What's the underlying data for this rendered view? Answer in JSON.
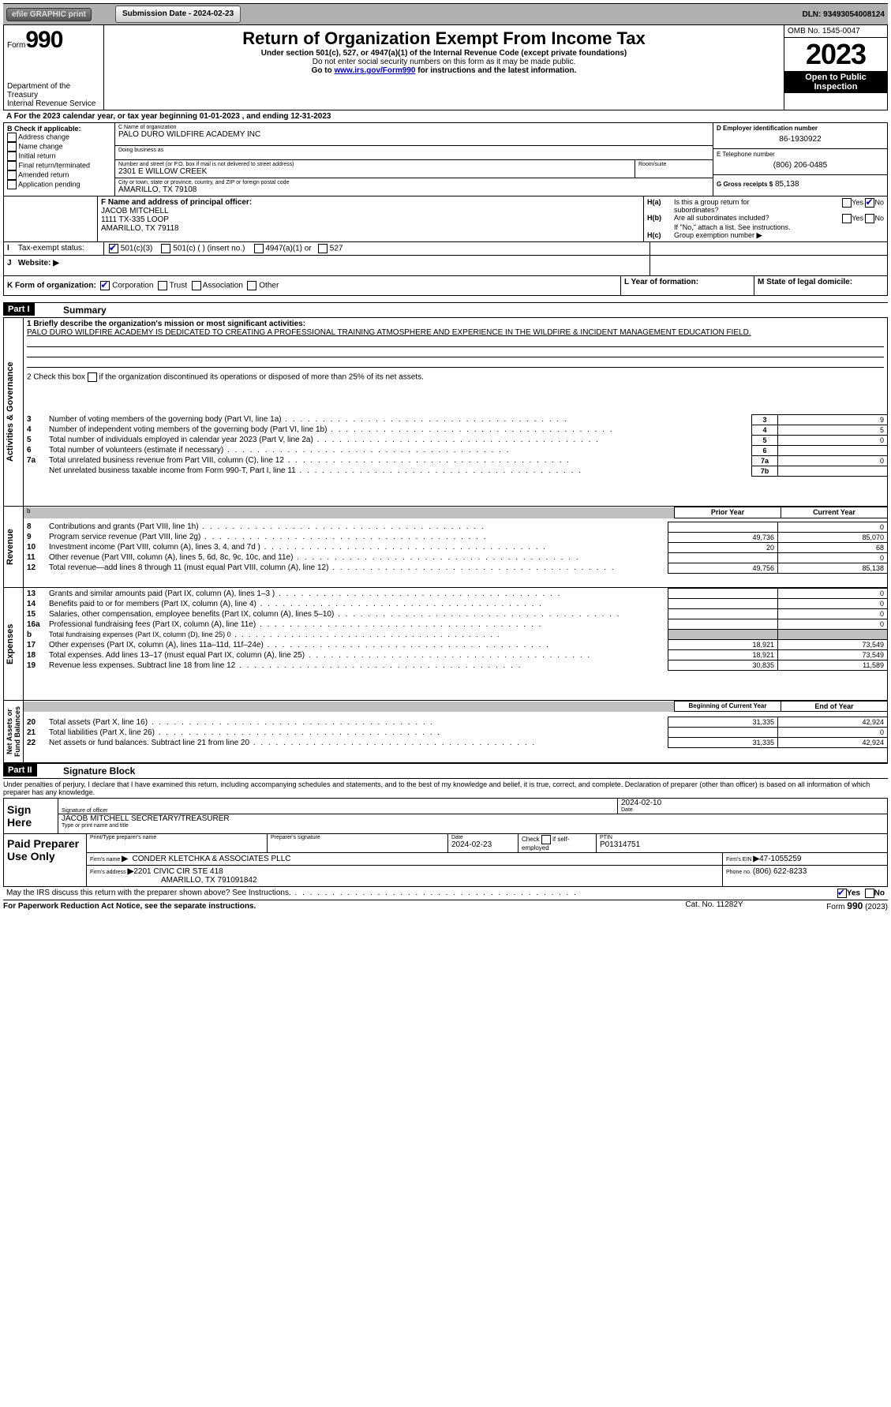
{
  "topbar": {
    "efile": "efile GRAPHIC print",
    "subDateLbl": "Submission Date - 2024-02-23",
    "dlnLbl": "DLN: 93493054008124"
  },
  "header": {
    "formWord": "Form",
    "formNum": "990",
    "title": "Return of Organization Exempt From Income Tax",
    "subtitle": "Under section 501(c), 527, or 4947(a)(1) of the Internal Revenue Code (except private foundations)",
    "warn": "Do not enter social security numbers on this form as it may be made public.",
    "goTo": "Go to ",
    "irsLink": "www.irs.gov/Form990",
    "goTo2": " for instructions and the latest information.",
    "dept": "Department of the Treasury",
    "irs": "Internal Revenue Service",
    "ombLbl": "OMB No. 1545-0047",
    "year": "2023",
    "inspect1": "Open to Public",
    "inspect2": "Inspection"
  },
  "A": {
    "line": "A For the 2023 calendar year, or tax year beginning 01-01-2023    , and ending 12-31-2023"
  },
  "B": {
    "hdr": "B  Check if applicable:",
    "opts": [
      "Address change",
      "Name change",
      "Initial return",
      "Final return/terminated",
      "Amended return",
      "Application pending"
    ]
  },
  "C": {
    "nameLbl": "C Name of organization",
    "name": "PALO DURO WILDFIRE ACADEMY INC",
    "dbaLbl": "Doing business as",
    "dba": "",
    "streetLbl": "Number and street (or P.O. box if mail is not delivered to street address)",
    "suiteLbl": "Room/suite",
    "street": "2301 E WILLOW CREEK",
    "cityLbl": "City or town, state or province, country, and ZIP or foreign postal code",
    "city": "AMARILLO, TX   79108"
  },
  "D": {
    "lbl": "D  Employer identification number",
    "val": "86-1930922"
  },
  "E": {
    "lbl": "E  Telephone number",
    "val": "(806) 206-0485"
  },
  "G": {
    "lbl": "G  Gross receipts $",
    "val": "85,138"
  },
  "F": {
    "lbl": "F  Name and address of principal officer:",
    "l1": "JACOB MITCHELL",
    "l2": "1111 TX-335 LOOP",
    "l3": "AMARILLO, TX  79118"
  },
  "H": {
    "a": "Is this a group return for",
    "a2": "subordinates?",
    "b": "Are all subordinates included?",
    "ifno": "If \"No,\" attach a list. See instructions.",
    "c": "Group exemption number ",
    "cArrow": "▶"
  },
  "I": {
    "lbl": "Tax-exempt status:",
    "o1": "501(c)(3)",
    "o2": "501(c) (  ) (insert no.)",
    "o3": "4947(a)(1) or",
    "o4": "527"
  },
  "J": {
    "lbl": "Website: ",
    "arrow": "▶"
  },
  "K": {
    "lbl": "K Form of organization:",
    "o1": "Corporation",
    "o2": "Trust",
    "o3": "Association",
    "o4": "Other"
  },
  "L": {
    "lbl": "L  Year of formation:"
  },
  "M": {
    "lbl": "M  State of legal domicile:"
  },
  "part1": {
    "hdr": "Part I",
    "title": "Summary"
  },
  "summary": {
    "l1lbl": "1   Briefly describe the organization's mission or most significant activities:",
    "mission": "PALO DURO WILDFIRE ACADEMY IS DEDICATED TO CREATING A PROFESSIONAL TRAINING ATMOSPHERE AND EXPERIENCE IN THE WILDFIRE & INCIDENT MANAGEMENT EDUCATION FIELD.",
    "l2a": "2   Check this box ",
    "l2b": " if the organization discontinued its operations or disposed of more than 25% of its net assets.",
    "rows": [
      {
        "n": "3",
        "t": "Number of voting members of the governing body (Part VI, line 1a)",
        "box": "3",
        "v": "9"
      },
      {
        "n": "4",
        "t": "Number of independent voting members of the governing body (Part VI, line 1b)",
        "box": "4",
        "v": "5"
      },
      {
        "n": "5",
        "t": "Total number of individuals employed in calendar year 2023 (Part V, line 2a)",
        "box": "5",
        "v": "0"
      },
      {
        "n": "6",
        "t": "Total number of volunteers (estimate if necessary)",
        "box": "6",
        "v": ""
      },
      {
        "n": "7a",
        "t": "Total unrelated business revenue from Part VIII, column (C), line 12",
        "box": "7a",
        "v": "0"
      },
      {
        "n": "",
        "t": "Net unrelated business taxable income from Form 990-T, Part I, line 11",
        "box": "7b",
        "v": ""
      }
    ],
    "priorHdr": "Prior Year",
    "currHdr": "Current Year"
  },
  "sideLabels": {
    "ag": "Activities & Governance",
    "rev": "Revenue",
    "exp": "Expenses",
    "na": "Net Assets or\nFund Balances"
  },
  "rev": [
    {
      "n": "8",
      "t": "Contributions and grants (Part VIII, line 1h)",
      "p": "",
      "c": "0"
    },
    {
      "n": "9",
      "t": "Program service revenue (Part VIII, line 2g)",
      "p": "49,736",
      "c": "85,070"
    },
    {
      "n": "10",
      "t": "Investment income (Part VIII, column (A), lines 3, 4, and 7d )",
      "p": "20",
      "c": "68"
    },
    {
      "n": "11",
      "t": "Other revenue (Part VIII, column (A), lines 5, 6d, 8c, 9c, 10c, and 11e)",
      "p": "",
      "c": "0"
    },
    {
      "n": "12",
      "t": "Total revenue—add lines 8 through 11 (must equal Part VIII, column (A), line 12)",
      "p": "49,756",
      "c": "85,138"
    }
  ],
  "exp": [
    {
      "n": "13",
      "t": "Grants and similar amounts paid (Part IX, column (A), lines 1–3 )",
      "p": "",
      "c": "0"
    },
    {
      "n": "14",
      "t": "Benefits paid to or for members (Part IX, column (A), line 4)",
      "p": "",
      "c": "0"
    },
    {
      "n": "15",
      "t": "Salaries, other compensation, employee benefits (Part IX, column (A), lines 5–10)",
      "p": "",
      "c": "0"
    },
    {
      "n": "16a",
      "t": "Professional fundraising fees (Part IX, column (A), line 11e)",
      "p": "",
      "c": "0"
    },
    {
      "n": "b",
      "t": "Total fundraising expenses (Part IX, column (D), line 25) 0",
      "p": null,
      "c": null
    },
    {
      "n": "17",
      "t": "Other expenses (Part IX, column (A), lines 11a–11d, 11f–24e)",
      "p": "18,921",
      "c": "73,549"
    },
    {
      "n": "18",
      "t": "Total expenses. Add lines 13–17 (must equal Part IX, column (A), line 25)",
      "p": "18,921",
      "c": "73,549"
    },
    {
      "n": "19",
      "t": "Revenue less expenses. Subtract line 18 from line 12",
      "p": "30,835",
      "c": "11,589"
    }
  ],
  "na": {
    "h1": "Beginning of Current Year",
    "h2": "End of Year",
    "rows": [
      {
        "n": "20",
        "t": "Total assets (Part X, line 16)",
        "p": "31,335",
        "c": "42,924"
      },
      {
        "n": "21",
        "t": "Total liabilities (Part X, line 26)",
        "p": "",
        "c": "0"
      },
      {
        "n": "22",
        "t": "Net assets or fund balances. Subtract line 21 from line 20",
        "p": "31,335",
        "c": "42,924"
      }
    ]
  },
  "part2": {
    "hdr": "Part II",
    "title": "Signature Block",
    "decl": "Under penalties of perjury, I declare that I have examined this return, including accompanying schedules and statements, and to the best of my knowledge and belief, it is true, correct, and complete. Declaration of preparer (other than officer) is based on all information of which preparer has any knowledge."
  },
  "sign": {
    "here": "Sign Here",
    "sigLbl": "Signature of officer",
    "dateLbl": "Date",
    "date": "2024-02-10",
    "name": "JACOB MITCHELL  SECRETARY/TREASURER",
    "nameLbl": "Type or print name and title"
  },
  "paid": {
    "hdr": "Paid Preparer Use Only",
    "pnameLbl": "Print/Type preparer's name",
    "psigLbl": "Preparer's signature",
    "pdateLbl": "Date",
    "pdate": "2024-02-23",
    "ck": "Check          if self-employed",
    "ptinLbl": "PTIN",
    "ptin": "P01314751",
    "firmLbl": "Firm's name    ",
    "firmArrow": "▶",
    "firm": "CONDER KLETCHKA & ASSOCIATES PLLC",
    "einLbl": "Firm's EIN ",
    "einArrow": "▶",
    "ein": "47-1055259",
    "addrLbl": "Firm's address ",
    "addrArrow": "▶",
    "addr1": "2201 CIVIC CIR STE 418",
    "addr2": "AMARILLO, TX  791091842",
    "phoneLbl": "Phone no. ",
    "phone": "(806) 622-8233"
  },
  "footer": {
    "discuss": "May the IRS discuss this return with the preparer shown above? See Instructions.",
    "pra": "For Paperwork Reduction Act Notice, see the separate instructions.",
    "cat": "Cat. No. 11282Y",
    "form": "Form 990 (2023)",
    "yes": "Yes",
    "no": "No"
  }
}
